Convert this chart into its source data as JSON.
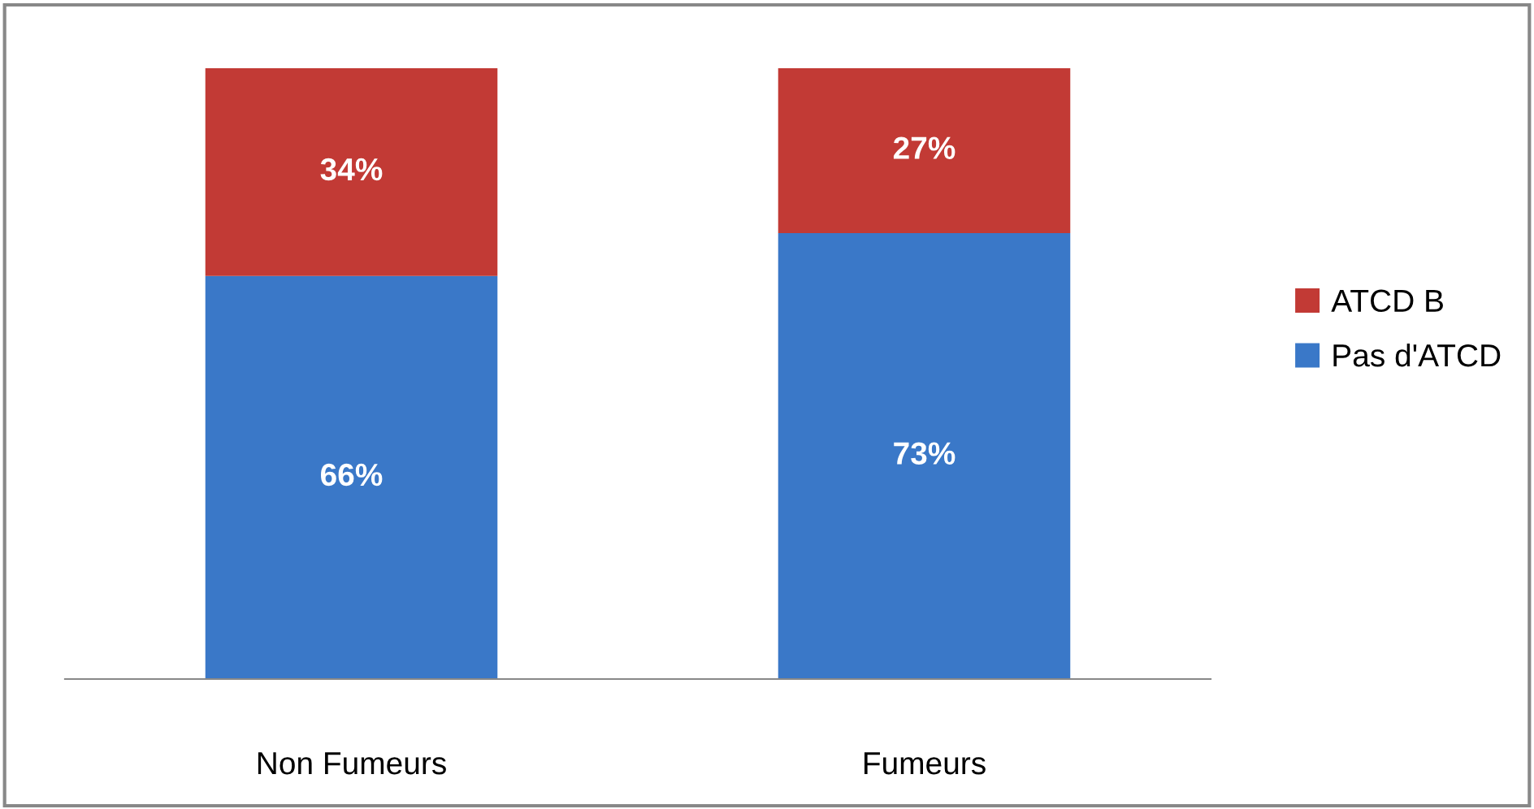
{
  "chart_data": {
    "type": "bar",
    "stacked": true,
    "data_labels": true,
    "legend": "right",
    "grid": false,
    "categories": [
      "Non Fumeurs",
      "Fumeurs"
    ],
    "series": [
      {
        "name": "Pas d'ATCD",
        "color": "#3a78c8",
        "values": [
          66,
          73
        ],
        "value_labels": [
          "66%",
          "73%"
        ]
      },
      {
        "name": "ATCD B",
        "color": "#c23a35",
        "values": [
          34,
          27
        ],
        "value_labels": [
          "34%",
          "27%"
        ]
      }
    ]
  }
}
